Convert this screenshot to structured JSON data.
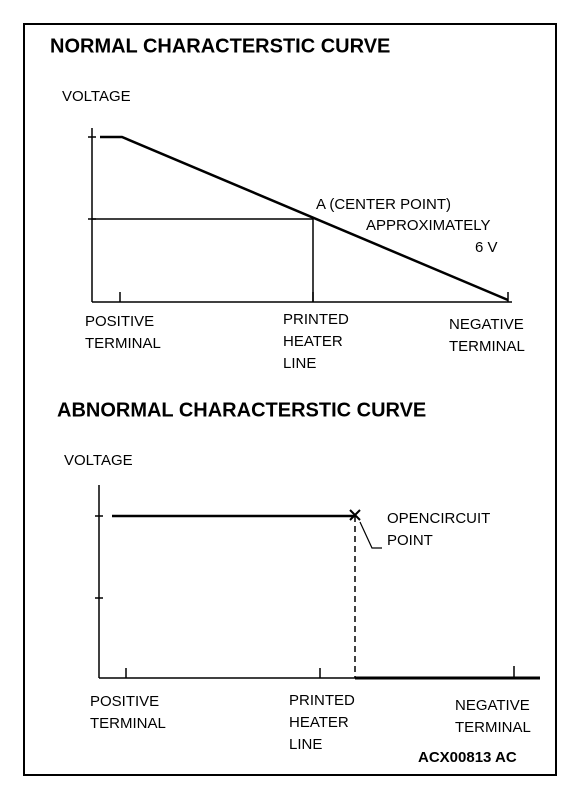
{
  "normal": {
    "title": "NORMAL CHARACTERSTIC CURVE",
    "y_label": "VOLTAGE",
    "annotation": [
      "A (CENTER POINT)",
      "APPROXIMATELY",
      "6 V"
    ],
    "x_labels": [
      [
        "POSITIVE",
        "TERMINAL"
      ],
      [
        "PRINTED",
        "HEATER",
        "LINE"
      ],
      [
        "NEGATIVE",
        "TERMINAL"
      ]
    ]
  },
  "abnormal": {
    "title": "ABNORMAL CHARACTERSTIC CURVE",
    "y_label": "VOLTAGE",
    "annotation": [
      "OPENCIRCUIT",
      "POINT"
    ],
    "x_labels": [
      [
        "POSITIVE",
        "TERMINAL"
      ],
      [
        "PRINTED",
        "HEATER",
        "LINE"
      ],
      [
        "NEGATIVE",
        "TERMINAL"
      ]
    ]
  },
  "figure_code": "ACX00813 AC"
}
